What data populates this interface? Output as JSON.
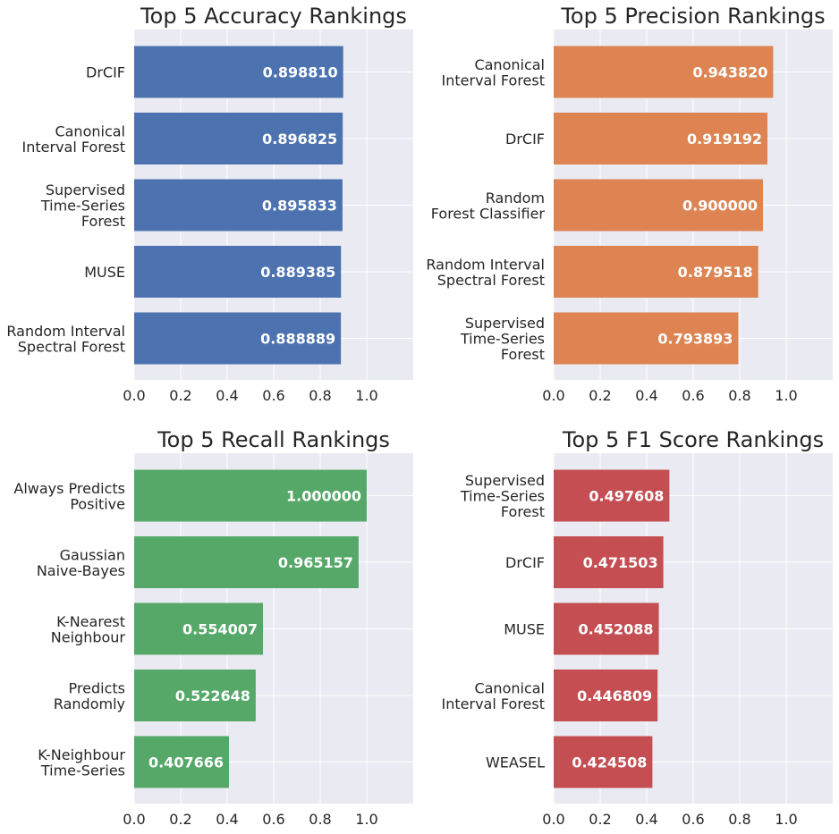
{
  "chart_data": [
    {
      "type": "bar",
      "orientation": "horizontal",
      "title": "Top 5 Accuracy Rankings",
      "color": "#4c72b0",
      "xlim": [
        0,
        1.2
      ],
      "xticks": [
        "0.0",
        "0.2",
        "0.4",
        "0.6",
        "0.8",
        "1.0"
      ],
      "grid": true,
      "categories": [
        [
          "DrCIF"
        ],
        [
          "Canonical",
          "Interval Forest"
        ],
        [
          "Supervised",
          "Time-Series",
          "Forest"
        ],
        [
          "MUSE"
        ],
        [
          "Random Interval",
          "Spectral Forest"
        ]
      ],
      "values": [
        0.89881,
        0.896825,
        0.895833,
        0.889385,
        0.888889
      ],
      "value_labels": [
        "0.898810",
        "0.896825",
        "0.895833",
        "0.889385",
        "0.888889"
      ]
    },
    {
      "type": "bar",
      "orientation": "horizontal",
      "title": "Top 5 Precision Rankings",
      "color": "#dd8452",
      "xlim": [
        0,
        1.2
      ],
      "xticks": [
        "0.0",
        "0.2",
        "0.4",
        "0.6",
        "0.8",
        "1.0"
      ],
      "grid": true,
      "categories": [
        [
          "Canonical",
          "Interval Forest"
        ],
        [
          "DrCIF"
        ],
        [
          "Random",
          "Forest Classifier"
        ],
        [
          "Random Interval",
          "Spectral Forest"
        ],
        [
          "Supervised",
          "Time-Series",
          "Forest"
        ]
      ],
      "values": [
        0.94382,
        0.919192,
        0.9,
        0.879518,
        0.793893
      ],
      "value_labels": [
        "0.943820",
        "0.919192",
        "0.900000",
        "0.879518",
        "0.793893"
      ]
    },
    {
      "type": "bar",
      "orientation": "horizontal",
      "title": "Top 5 Recall Rankings",
      "color": "#55a868",
      "xlim": [
        0,
        1.2
      ],
      "xticks": [
        "0.0",
        "0.2",
        "0.4",
        "0.6",
        "0.8",
        "1.0"
      ],
      "grid": true,
      "categories": [
        [
          "Always Predicts",
          "Positive"
        ],
        [
          "Gaussian",
          "Naive-Bayes"
        ],
        [
          "K-Nearest",
          "Neighbour"
        ],
        [
          "Predicts",
          "Randomly"
        ],
        [
          "K-Neighbour",
          "Time-Series"
        ]
      ],
      "values": [
        1.0,
        0.965157,
        0.554007,
        0.522648,
        0.407666
      ],
      "value_labels": [
        "1.000000",
        "0.965157",
        "0.554007",
        "0.522648",
        "0.407666"
      ]
    },
    {
      "type": "bar",
      "orientation": "horizontal",
      "title": "Top 5 F1 Score Rankings",
      "color": "#c44e52",
      "xlim": [
        0,
        1.2
      ],
      "xticks": [
        "0.0",
        "0.2",
        "0.4",
        "0.6",
        "0.8",
        "1.0"
      ],
      "grid": true,
      "categories": [
        [
          "Supervised",
          "Time-Series",
          "Forest"
        ],
        [
          "DrCIF"
        ],
        [
          "MUSE"
        ],
        [
          "Canonical",
          "Interval Forest"
        ],
        [
          "WEASEL"
        ]
      ],
      "values": [
        0.497608,
        0.471503,
        0.452088,
        0.446809,
        0.424508
      ],
      "value_labels": [
        "0.497608",
        "0.471503",
        "0.452088",
        "0.446809",
        "0.424508"
      ]
    }
  ]
}
